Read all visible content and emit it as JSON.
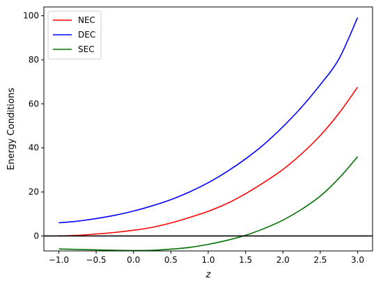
{
  "chart_data": {
    "type": "line",
    "title": "",
    "xlabel": "z",
    "ylabel": "Energy Conditions",
    "xlim": [
      -1.2,
      3.2
    ],
    "ylim": [
      -6.8,
      104
    ],
    "x_ticks": [
      -1.0,
      -0.5,
      0.0,
      0.5,
      1.0,
      1.5,
      2.0,
      2.5,
      3.0
    ],
    "x_tick_labels": [
      "−1.0",
      "−0.5",
      "0.0",
      "0.5",
      "1.0",
      "1.5",
      "2.0",
      "2.5",
      "3.0"
    ],
    "y_ticks": [
      0,
      20,
      40,
      60,
      80,
      100
    ],
    "y_tick_labels": [
      "0",
      "20",
      "40",
      "60",
      "80",
      "100"
    ],
    "grid": false,
    "legend_position": "top-left",
    "reference_line": {
      "y": 0,
      "color": "#000000"
    },
    "x": [
      -1.0,
      -0.75,
      -0.5,
      -0.25,
      0.0,
      0.25,
      0.5,
      0.75,
      1.0,
      1.25,
      1.5,
      1.75,
      2.0,
      2.25,
      2.5,
      2.75,
      3.0
    ],
    "series": [
      {
        "name": "NEC",
        "color": "#ff0000",
        "values": [
          0.0,
          0.3,
          0.9,
          1.6,
          2.6,
          3.9,
          5.9,
          8.4,
          11.2,
          14.7,
          19.2,
          24.4,
          30.2,
          37.3,
          45.6,
          55.7,
          67.6
        ]
      },
      {
        "name": "DEC",
        "color": "#0000ff",
        "values": [
          6.0,
          6.7,
          7.9,
          9.4,
          11.3,
          13.7,
          16.5,
          20.0,
          24.2,
          29.2,
          35.0,
          41.7,
          49.6,
          58.5,
          68.7,
          80.4,
          99.2
        ]
      },
      {
        "name": "SEC",
        "color": "#007000",
        "values": [
          -5.9,
          -6.1,
          -6.3,
          -6.5,
          -6.6,
          -6.5,
          -6.0,
          -5.2,
          -3.8,
          -2.0,
          0.3,
          3.4,
          7.2,
          12.1,
          18.1,
          26.2,
          36.0
        ]
      }
    ]
  }
}
